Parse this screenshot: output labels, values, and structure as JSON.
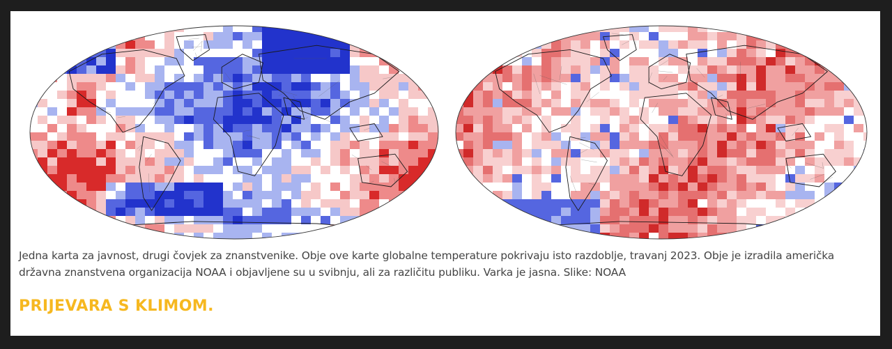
{
  "caption": "Jedna karta za javnost, drugi čovjek za znanstvenike. Obje ove karte globalne temperature pokrivaju isto razdoblje, travanj 2023. Obje je izradila američka državna znanstvena organizacija NOAA i objavljene su u svibnju, ali za različitu publiku. Varka je jasna. Slike: NOAA",
  "heading": "PRIJEVARA S KLIMOM.",
  "maps": {
    "left": {
      "style": "anomaly-mixed",
      "palette": [
        "#2233cc",
        "#5566e0",
        "#a8b4f0",
        "#ffffff",
        "#f6c8c8",
        "#ee8a8a",
        "#d82a2a"
      ]
    },
    "right": {
      "style": "anomaly-warm",
      "palette": [
        "#5566e0",
        "#a8b4f0",
        "#ffffff",
        "#f8d0d0",
        "#f0a0a0",
        "#e57070",
        "#d02a2a"
      ]
    }
  },
  "colors": {
    "background": "#1e1e1e",
    "panel": "#ffffff",
    "caption": "#444444",
    "heading": "#f6b820"
  }
}
